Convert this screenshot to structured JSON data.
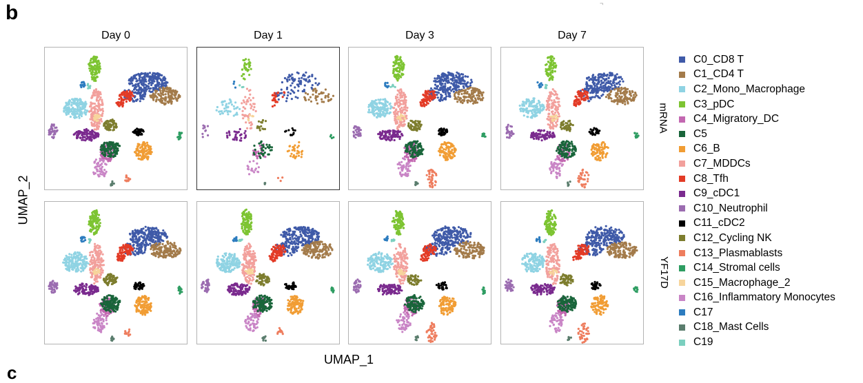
{
  "figure": {
    "panel_letter": "b",
    "footer_letter": "c",
    "corner_mark": "¬"
  },
  "chart_data": {
    "type": "scatter",
    "xlabel": "UMAP_1",
    "ylabel": "UMAP_2",
    "columns": [
      "Day 0",
      "Day 1",
      "Day 3",
      "Day 7"
    ],
    "rows": [
      "mRNA",
      "YF17D"
    ],
    "grid": false,
    "legend_placement": "right",
    "legend": [
      {
        "label": "C0_CD8 T",
        "color": "#3f5aa8"
      },
      {
        "label": "C1_CD4 T",
        "color": "#a37b4a"
      },
      {
        "label": "C2_Mono_Macrophage",
        "color": "#8fd3e3"
      },
      {
        "label": "C3_pDC",
        "color": "#7dc432"
      },
      {
        "label": "C4_Migratory_DC",
        "color": "#c368b1"
      },
      {
        "label": "C5",
        "color": "#19653a"
      },
      {
        "label": "C6_B",
        "color": "#f19d34"
      },
      {
        "label": "C7_MDDCs",
        "color": "#f2a09c"
      },
      {
        "label": "C8_Tfh",
        "color": "#e33b26"
      },
      {
        "label": "C9_cDC1",
        "color": "#7a2a8e"
      },
      {
        "label": "C10_Neutrophil",
        "color": "#9b6cb0"
      },
      {
        "label": "C11_cDC2",
        "color": "#000000"
      },
      {
        "label": "C12_Cycling NK",
        "color": "#7d7d2e"
      },
      {
        "label": "C13_Plasmablasts",
        "color": "#ee7d5e"
      },
      {
        "label": "C14_Stromal cells",
        "color": "#2e9d62"
      },
      {
        "label": "C15_Macrophage_2",
        "color": "#f7d59c"
      },
      {
        "label": "C16_Inflammatory Monocytes",
        "color": "#c985c6"
      },
      {
        "label": "C17",
        "color": "#2d7cbf"
      },
      {
        "label": "C18_Mast Cells",
        "color": "#5a7d6d"
      },
      {
        "label": "C19",
        "color": "#7bcfbf"
      }
    ]
  }
}
